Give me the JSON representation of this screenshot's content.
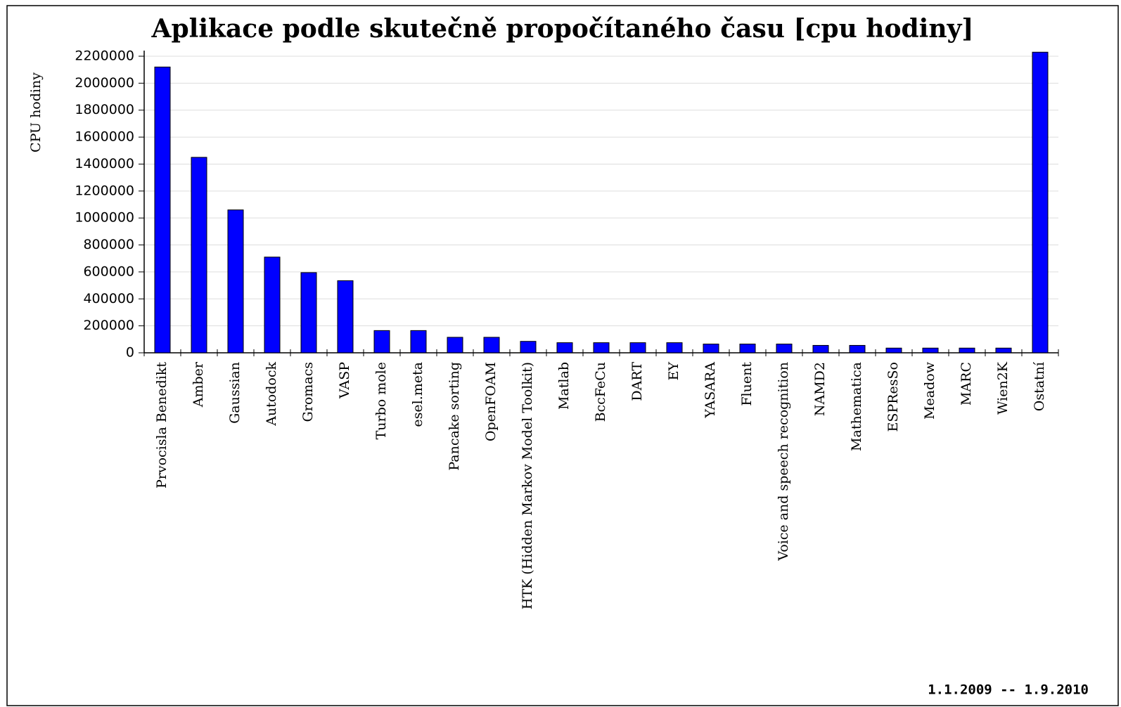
{
  "chart_data": {
    "type": "bar",
    "title": "Aplikace podle skutečně propočítaného času [cpu hodiny]",
    "y_label": "CPU hodiny",
    "annotation": "1.1.2009 -- 1.9.2010",
    "categories": [
      "Prvocisla Benedikt",
      "Amber",
      "Gaussian",
      "Autodock",
      "Gromacs",
      "VASP",
      "Turbo mole",
      "esel.meta",
      "Pancake sorting",
      "OpenFOAM",
      "HTK (Hidden Markov Model Toolkit)",
      "Matlab",
      "BccFeCu",
      "DART",
      "EY",
      "YASARA",
      "Fluent",
      "Voice and speech recognition",
      "NAMD2",
      "Mathematica",
      "ESPResSo",
      "Meadow",
      "MARC",
      "Wien2K",
      "Ostatní"
    ],
    "values": [
      2120000,
      1450000,
      1060000,
      710000,
      595000,
      535000,
      165000,
      165000,
      115000,
      115000,
      85000,
      75000,
      75000,
      75000,
      75000,
      65000,
      65000,
      65000,
      55000,
      55000,
      35000,
      35000,
      35000,
      35000,
      2230000
    ],
    "color": "#0000ff",
    "ylim": [
      0,
      2200000
    ],
    "yticks": [
      0,
      200000,
      400000,
      600000,
      800000,
      1000000,
      1200000,
      1400000,
      1600000,
      1800000,
      2000000,
      2200000
    ],
    "grid": true
  }
}
